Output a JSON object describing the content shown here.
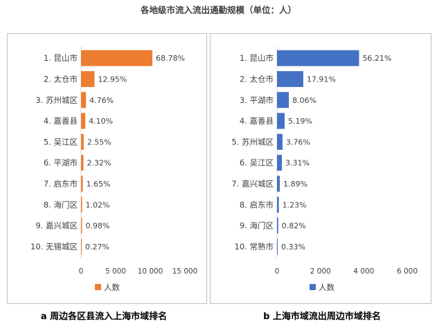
{
  "title": "各地级市流入流出通勤规模（单位：人）",
  "chart_data": [
    {
      "type": "bar",
      "orientation": "horizontal",
      "caption": "a 周边各区县流入上海市域排名",
      "color": "#ed7d31",
      "categories": [
        "1. 昆山市",
        "2. 太仓市",
        "3. 苏州城区",
        "4. 嘉善县",
        "5. 吴江区",
        "6. 平湖市",
        "7. 启东市",
        "8. 海门区",
        "9. 嘉兴城区",
        "10. 无锡城区"
      ],
      "series": [
        {
          "name": "人数",
          "values": [
            10300,
            1940,
            713,
            614,
            382,
            347,
            247,
            153,
            147,
            40
          ]
        }
      ],
      "data_labels": [
        "68.78%",
        "12.95%",
        "4.76%",
        "4.10%",
        "2.55%",
        "2.32%",
        "1.65%",
        "1.02%",
        "0.98%",
        "0.27%"
      ],
      "x_ticks": [
        "0",
        "5 000",
        "10 000",
        "15 000"
      ],
      "xlim": [
        0,
        15000
      ],
      "legend": "bottom"
    },
    {
      "type": "bar",
      "orientation": "horizontal",
      "caption": "b 上海市域流出周边市域排名",
      "color": "#4472c4",
      "categories": [
        "1. 昆山市",
        "2. 太仓市",
        "3. 平湖市",
        "4. 嘉善县",
        "5. 苏州城区",
        "6. 吴江区",
        "7. 嘉兴城区",
        "8. 启东市",
        "9. 海门区",
        "10. 常熟市"
      ],
      "series": [
        {
          "name": "人数",
          "values": [
            3780,
            1210,
            545,
            350,
            253,
            223,
            127,
            83,
            55,
            22
          ]
        }
      ],
      "data_labels": [
        "56.21%",
        "17.91%",
        "8.06%",
        "5.19%",
        "3.76%",
        "3.31%",
        "1.89%",
        "1.23%",
        "0.82%",
        "0.33%"
      ],
      "x_ticks": [
        "0",
        "2 000",
        "4 000",
        "6 000"
      ],
      "xlim": [
        0,
        6000
      ],
      "legend": "bottom"
    }
  ]
}
